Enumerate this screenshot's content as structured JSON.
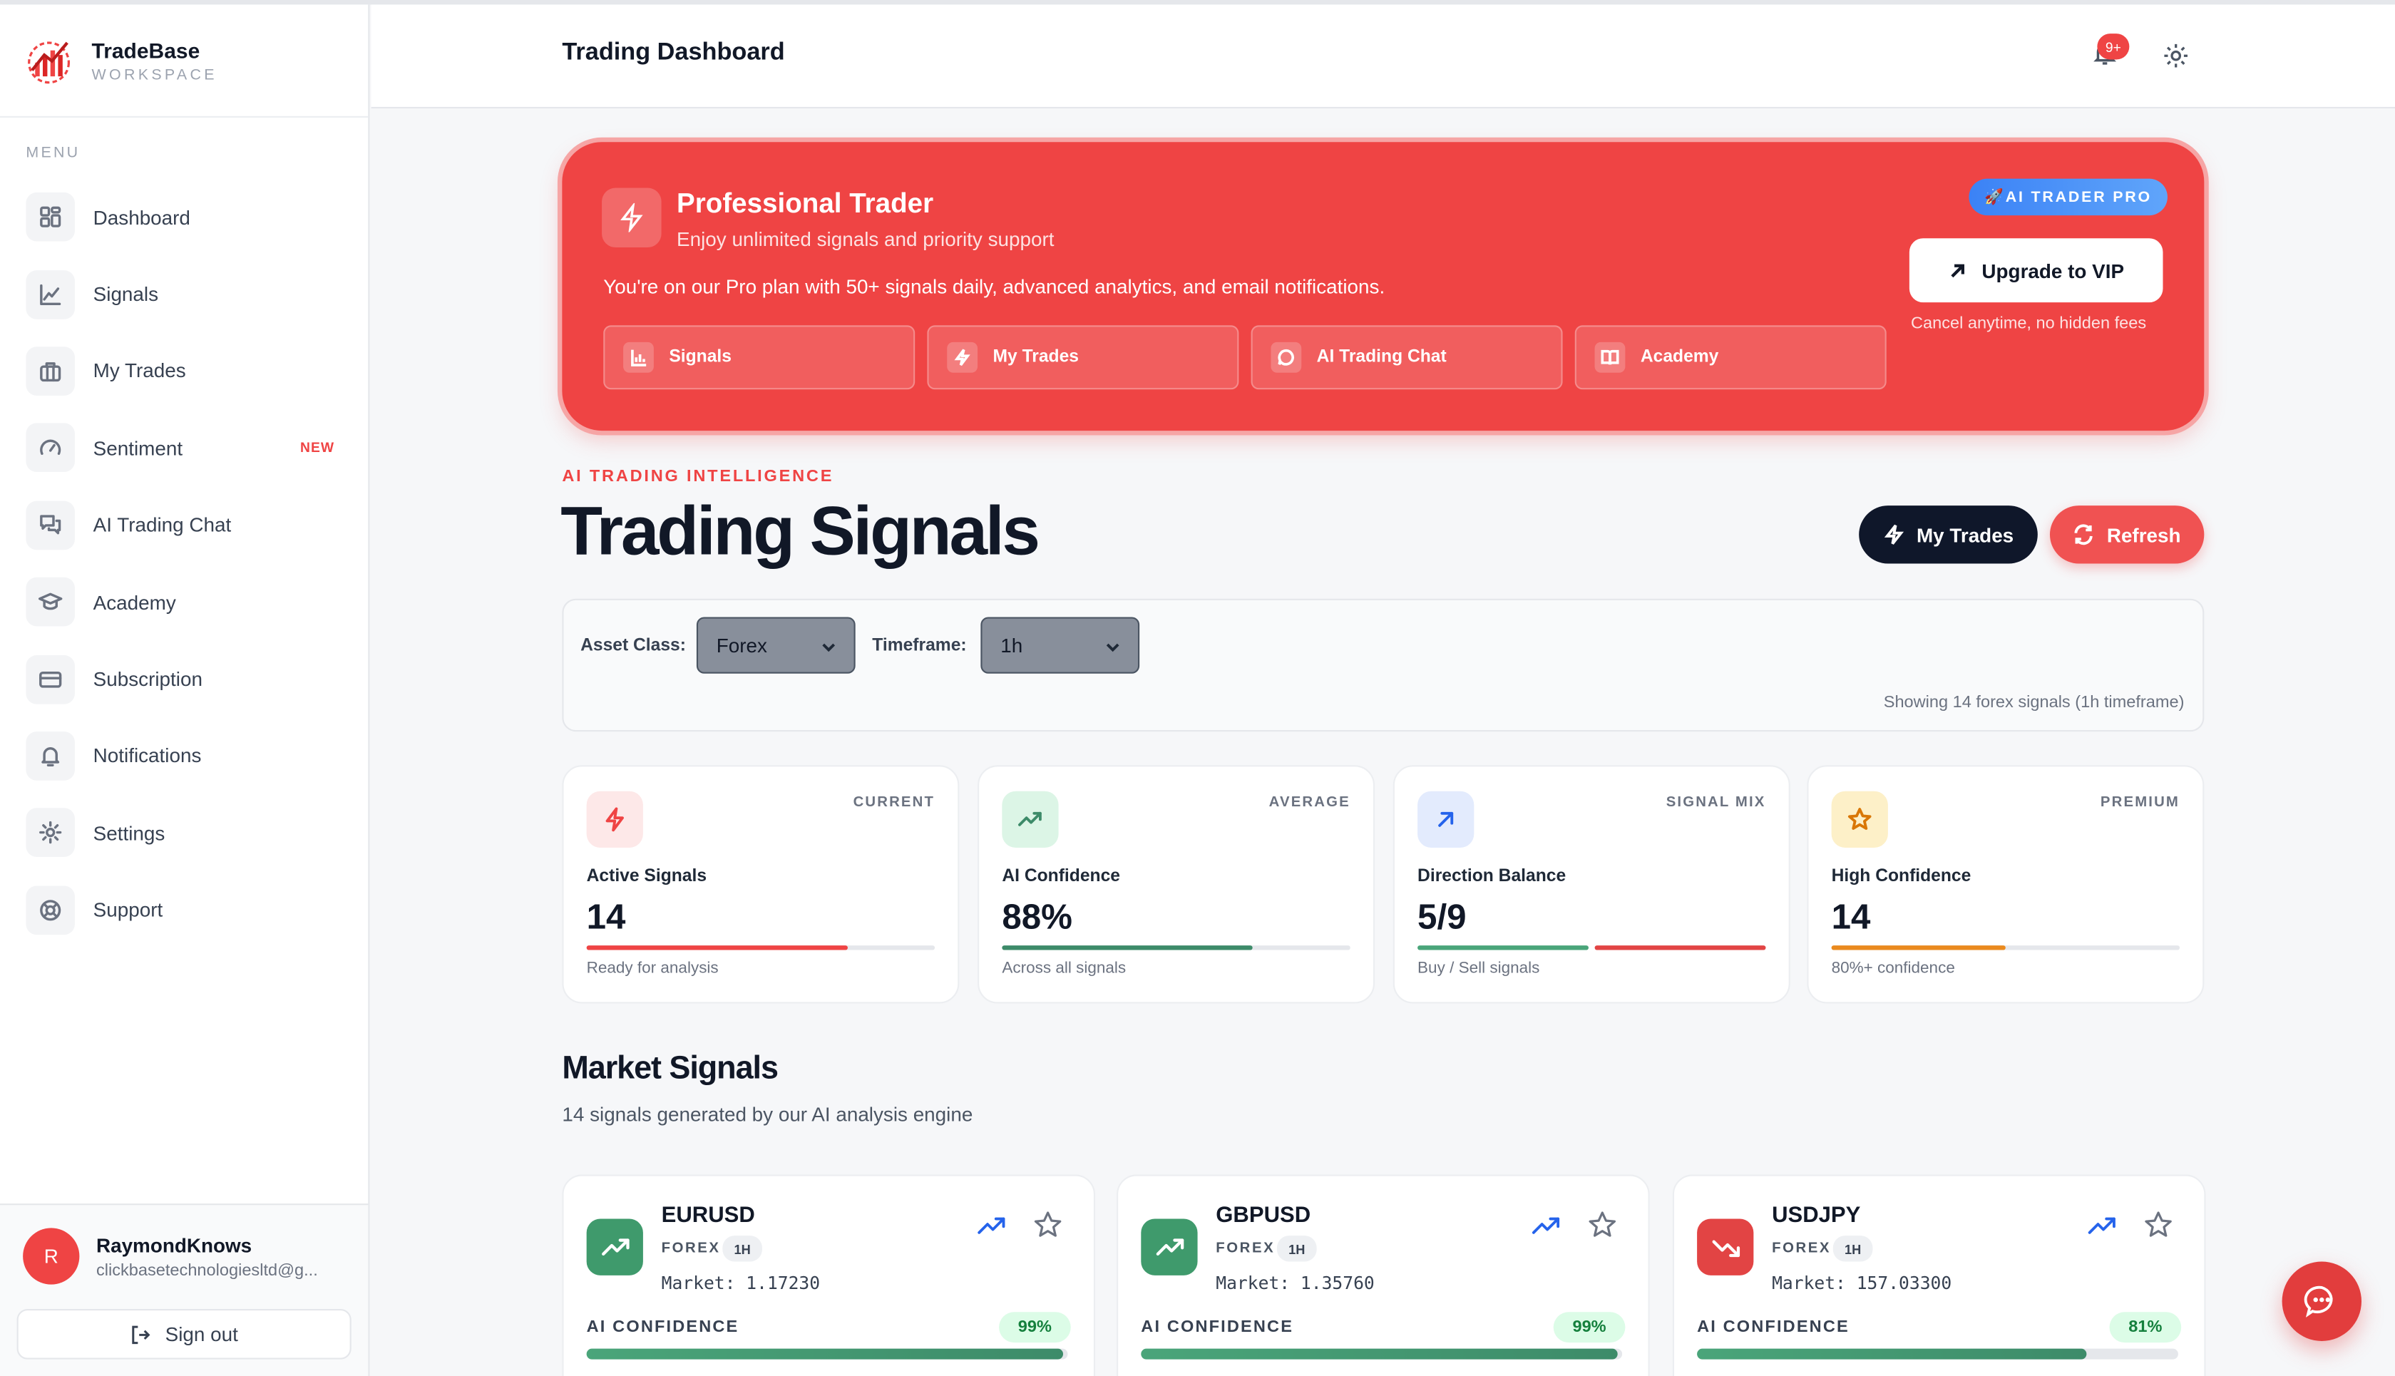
{
  "brand": {
    "name": "TradeBase",
    "sub": "WORKSPACE"
  },
  "sidebar": {
    "menu_label": "MENU",
    "items": [
      {
        "label": "Dashboard",
        "icon": "grid-icon"
      },
      {
        "label": "Signals",
        "icon": "chart-line-icon"
      },
      {
        "label": "My Trades",
        "icon": "briefcase-icon"
      },
      {
        "label": "Sentiment",
        "icon": "gauge-icon",
        "badge": "NEW"
      },
      {
        "label": "AI Trading Chat",
        "icon": "chat-icon"
      },
      {
        "label": "Academy",
        "icon": "graduation-cap-icon"
      },
      {
        "label": "Subscription",
        "icon": "credit-card-icon"
      },
      {
        "label": "Notifications",
        "icon": "bell-icon"
      },
      {
        "label": "Settings",
        "icon": "gear-icon"
      },
      {
        "label": "Support",
        "icon": "lifebuoy-icon"
      }
    ]
  },
  "user": {
    "initial": "R",
    "name": "RaymondKnows",
    "email": "clickbasetechnologiesltd@g...",
    "signout": "Sign out"
  },
  "header": {
    "title": "Trading Dashboard",
    "notification_count": "9+"
  },
  "hero": {
    "title": "Professional Trader",
    "subtitle": "Enjoy unlimited signals and priority support",
    "description": "You're on our Pro plan with 50+ signals daily, advanced analytics, and email notifications.",
    "pill": "🚀AI TRADER PRO",
    "upgrade": "Upgrade to VIP",
    "cancel_note": "Cancel anytime, no hidden fees",
    "tabs": [
      "Signals",
      "My Trades",
      "AI Trading Chat",
      "Academy"
    ]
  },
  "section": {
    "eyebrow": "AI TRADING INTELLIGENCE",
    "title": "Trading Signals",
    "my_trades": "My Trades",
    "refresh": "Refresh"
  },
  "filters": {
    "asset_label": "Asset Class:",
    "asset_value": "Forex",
    "timeframe_label": "Timeframe:",
    "timeframe_value": "1h",
    "note": "Showing 14 forex signals (1h timeframe)"
  },
  "stats": [
    {
      "tag": "CURRENT",
      "label": "Active Signals",
      "value": "14",
      "note": "Ready for analysis",
      "progress": 0.75,
      "color": "#ef4444"
    },
    {
      "tag": "AVERAGE",
      "label": "AI Confidence",
      "value": "88%",
      "note": "Across all signals",
      "progress": 0.72,
      "color": "#3d8b69"
    },
    {
      "tag": "SIGNAL MIX",
      "label": "Direction Balance",
      "value": "5/9",
      "note": "Buy / Sell signals",
      "progress": 0.5,
      "color": "#4aa57a"
    },
    {
      "tag": "PREMIUM",
      "label": "High Confidence",
      "value": "14",
      "note": "80%+ confidence",
      "progress": 0.5,
      "color": "#ea8a1e"
    }
  ],
  "market": {
    "title": "Market Signals",
    "subtitle": "14 signals generated by our AI analysis engine",
    "confidence_label": "AI CONFIDENCE",
    "signals": [
      {
        "pair": "EURUSD",
        "class": "FOREX",
        "tf": "1H",
        "market": "Market: 1.17230",
        "confidence": "99%",
        "conf_value": 0.99,
        "direction": "up",
        "color": "#3f9a6c"
      },
      {
        "pair": "GBPUSD",
        "class": "FOREX",
        "tf": "1H",
        "market": "Market: 1.35760",
        "confidence": "99%",
        "conf_value": 0.99,
        "direction": "up",
        "color": "#3f9a6c"
      },
      {
        "pair": "USDJPY",
        "class": "FOREX",
        "tf": "1H",
        "market": "Market: 157.03300",
        "confidence": "81%",
        "conf_value": 0.81,
        "direction": "down",
        "color": "#e24444"
      }
    ]
  },
  "colors": {
    "accent": "#ef4444",
    "dark": "#0f172a",
    "buy": "#3d8b69"
  }
}
